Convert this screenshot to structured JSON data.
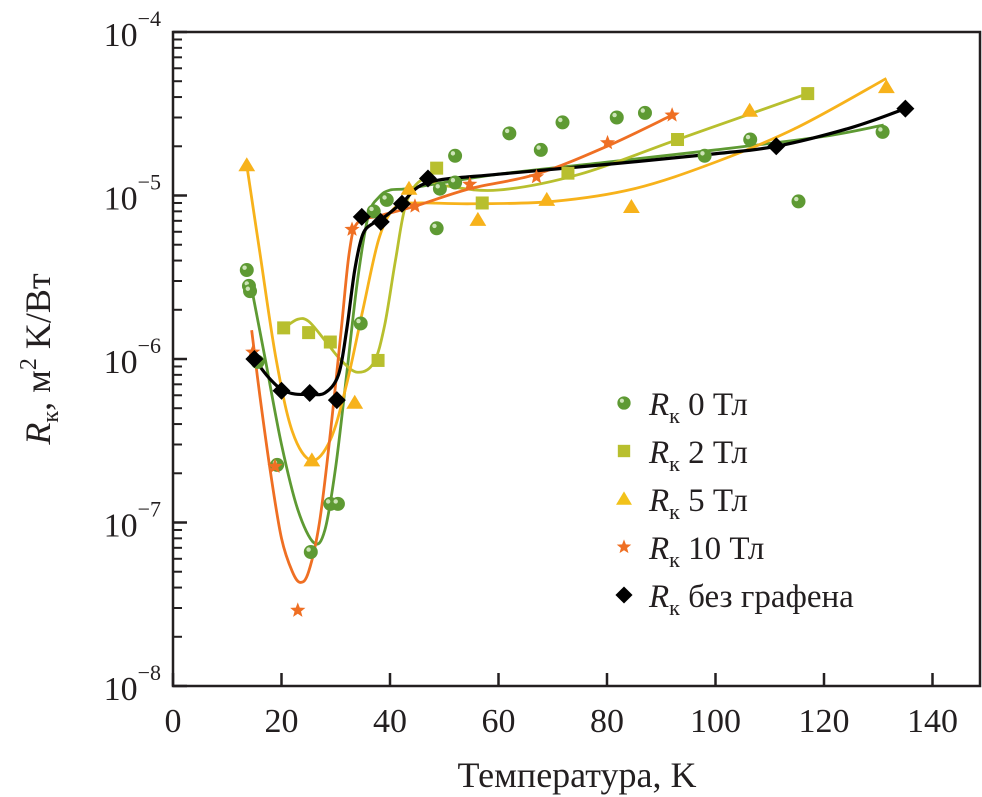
{
  "chart_data": {
    "type": "scatter",
    "title": "",
    "xlabel": "Температура, K",
    "ylabel": {
      "symbol": "R",
      "subscript": "к",
      "rest": ", м",
      "sup": "2",
      "tail": " K/Вт"
    },
    "xlim": [
      0,
      149
    ],
    "ylim": [
      1e-08,
      0.0001
    ],
    "yscale": "log",
    "grid": false,
    "legend_position": "lower-right",
    "x_ticks": [
      0,
      20,
      40,
      60,
      80,
      100,
      120,
      140
    ],
    "x_tick_labels": [
      "0",
      "20",
      "40",
      "60",
      "80",
      "100",
      "120",
      "140"
    ],
    "y_ticks": [
      {
        "value": 0.0001,
        "base": "10",
        "exp": "−4"
      },
      {
        "value": 1e-05,
        "base": "10",
        "exp": "−5"
      },
      {
        "value": 1e-06,
        "base": "10",
        "exp": "−6"
      },
      {
        "value": 1e-07,
        "base": "10",
        "exp": "−7"
      },
      {
        "value": 1e-08,
        "base": "10",
        "exp": "−8"
      }
    ],
    "series": [
      {
        "name": "R к 0 Тл",
        "label_main": "0 Тл",
        "marker": "ball",
        "color": "#5e9a33",
        "x": [
          13.6,
          14.0,
          14.2,
          15.6,
          19.2,
          25.4,
          29.0,
          30.4,
          34.6,
          37.0,
          39.4,
          48.6,
          49.2,
          52.0,
          52.0,
          62.0,
          67.8,
          71.8,
          81.8,
          87.0,
          98.0,
          106.4,
          115.3,
          130.8
        ],
        "y": [
          3.5e-06,
          2.8e-06,
          2.6e-06,
          9.6e-07,
          2.25e-07,
          6.6e-08,
          1.3e-07,
          1.3e-07,
          1.65e-06,
          8e-06,
          9.4e-06,
          6.3e-06,
          1.1e-05,
          1.2e-05,
          1.75e-05,
          2.4e-05,
          1.9e-05,
          2.8e-05,
          3e-05,
          3.2e-05,
          1.75e-05,
          2.2e-05,
          9.2e-06,
          2.45e-05
        ],
        "fit_x": [
          14.5,
          17,
          20,
          23,
          26,
          28,
          30,
          32,
          34,
          36,
          38,
          40,
          43,
          50,
          60,
          80,
          100,
          120,
          131
        ],
        "fit_y": [
          2.7e-06,
          1e-06,
          3e-07,
          1.2e-07,
          7.5e-08,
          9e-08,
          2.2e-07,
          8e-07,
          3e-06,
          7.5e-06,
          9.8e-06,
          1.08e-05,
          1.1e-05,
          1.2e-05,
          1.35e-05,
          1.6e-05,
          1.9e-05,
          2.3e-05,
          2.7e-05
        ]
      },
      {
        "name": "R к 2 Тл",
        "label_main": "2 Тл",
        "marker": "square",
        "color": "#b8bf2e",
        "x": [
          20.4,
          25.0,
          29.0,
          37.8,
          48.6,
          57.0,
          72.8,
          93.0,
          117.0
        ],
        "y": [
          1.55e-06,
          1.45e-06,
          1.27e-06,
          9.8e-07,
          1.47e-05,
          9e-06,
          1.37e-05,
          2.2e-05,
          4.2e-05
        ],
        "fit_x": [
          20.5,
          23,
          25,
          28,
          31,
          34,
          37,
          39,
          41,
          43,
          46,
          50,
          60,
          75,
          93,
          117
        ],
        "fit_y": [
          1.55e-06,
          1.75e-06,
          1.7e-06,
          1.3e-06,
          9.8e-07,
          8.3e-07,
          9.5e-07,
          1.6e-06,
          4e-06,
          9e-06,
          1.25e-05,
          1.15e-05,
          1.08e-05,
          1.35e-05,
          2.2e-05,
          4.2e-05
        ]
      },
      {
        "name": "R к 5 Тл",
        "label_main": "5 Тл",
        "marker": "triangle",
        "color": "#f7b21b",
        "legend_color": "#f2c21a",
        "x": [
          13.6,
          25.6,
          33.5,
          43.5,
          56.2,
          68.9,
          84.5,
          106.3,
          131.5
        ],
        "y": [
          1.53e-05,
          2.4e-07,
          5.4e-07,
          1.1e-05,
          7.1e-06,
          9.4e-06,
          8.5e-06,
          3.3e-05,
          4.6e-05
        ],
        "fit_x": [
          13.6,
          16,
          19,
          22,
          25.5,
          29,
          32,
          35,
          38,
          41,
          45,
          55,
          70,
          85,
          100,
          115,
          131.5
        ],
        "fit_y": [
          1.53e-05,
          4.5e-06,
          1e-06,
          3.6e-07,
          2.4e-07,
          3.2e-07,
          7e-07,
          2e-06,
          5.5e-06,
          8.5e-06,
          9e-06,
          8.9e-06,
          9.2e-06,
          1.1e-05,
          1.6e-05,
          2.6e-05,
          5.2e-05
        ]
      },
      {
        "name": "R к 10 Тл",
        "label_main": "10 Тл",
        "marker": "star",
        "color": "#ef6f23",
        "x": [
          14.7,
          18.8,
          23.0,
          33.0,
          44.6,
          54.7,
          67.0,
          80.1,
          92.0
        ],
        "y": [
          1.1e-06,
          2.2e-07,
          2.9e-08,
          6.2e-06,
          8.6e-06,
          1.17e-05,
          1.3e-05,
          2.1e-05,
          3.1e-05
        ],
        "fit_x": [
          14.5,
          16,
          18,
          20,
          22,
          23.5,
          25,
          27,
          29,
          31,
          32.5,
          34,
          38,
          44.6,
          54.7,
          67,
          80,
          92
        ],
        "fit_y": [
          1.5e-06,
          6e-07,
          2e-07,
          8e-08,
          5e-08,
          4.3e-08,
          5e-08,
          1e-07,
          3.5e-07,
          1.5e-06,
          4.5e-06,
          6.8e-06,
          7.5e-06,
          8.6e-06,
          1.1e-05,
          1.35e-05,
          2e-05,
          3.1e-05
        ]
      },
      {
        "name": "R к без графена",
        "label_main": "без графена",
        "marker": "diamond",
        "color": "#000000",
        "x": [
          15.0,
          20.0,
          25.2,
          30.2,
          34.8,
          38.3,
          42.2,
          47.0,
          111.2,
          135.0
        ],
        "y": [
          1e-06,
          6.4e-07,
          6.2e-07,
          5.6e-07,
          7.4e-06,
          6.9e-06,
          8.9e-06,
          1.27e-05,
          2e-05,
          3.4e-05
        ],
        "fit_x": [
          15,
          17.5,
          20,
          22.5,
          25.2,
          28,
          30.5,
          32,
          33.5,
          35,
          37,
          39,
          42.2,
          47,
          60,
          80,
          100,
          111.2,
          125,
          135
        ],
        "fit_y": [
          1e-06,
          7.8e-07,
          6.5e-07,
          6.1e-07,
          6.1e-07,
          6.2e-07,
          8e-07,
          1.5e-06,
          3.5e-06,
          5.8e-06,
          6.8e-06,
          7.4e-06,
          9e-06,
          1.2e-05,
          1.35e-05,
          1.55e-05,
          1.8e-05,
          2e-05,
          2.6e-05,
          3.4e-05
        ]
      }
    ]
  }
}
